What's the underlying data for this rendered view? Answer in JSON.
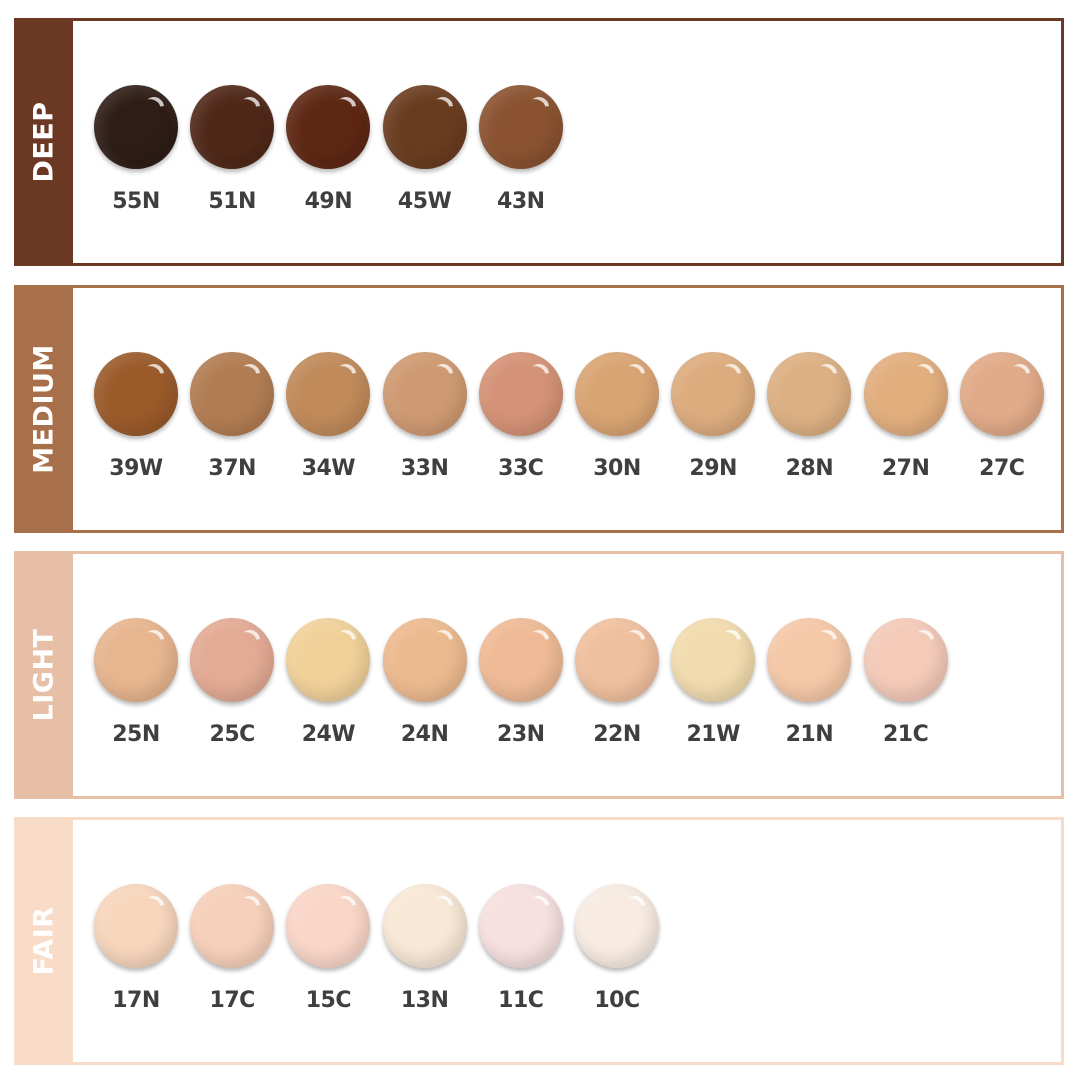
{
  "sections": [
    {
      "name": "DEEP",
      "color": "#6a3823",
      "shades": [
        {
          "code": "55N",
          "color": "#2e1d16"
        },
        {
          "code": "51N",
          "color": "#4f2818"
        },
        {
          "code": "49N",
          "color": "#5e2714"
        },
        {
          "code": "45W",
          "color": "#6a3c1f"
        },
        {
          "code": "43N",
          "color": "#8a5230"
        }
      ]
    },
    {
      "name": "MEDIUM",
      "color": "#a8704a",
      "shades": [
        {
          "code": "39W",
          "color": "#9a5a2a"
        },
        {
          "code": "37N",
          "color": "#b27c52"
        },
        {
          "code": "34W",
          "color": "#c08a5a"
        },
        {
          "code": "33N",
          "color": "#cf9a72"
        },
        {
          "code": "33C",
          "color": "#d49276"
        },
        {
          "code": "30N",
          "color": "#d9a473"
        },
        {
          "code": "29N",
          "color": "#ddac7e"
        },
        {
          "code": "28N",
          "color": "#ddb083"
        },
        {
          "code": "27N",
          "color": "#e2ae7e"
        },
        {
          "code": "27C",
          "color": "#e1aa88"
        }
      ]
    },
    {
      "name": "LIGHT",
      "color": "#e7bea6",
      "shades": [
        {
          "code": "25N",
          "color": "#e7b58e"
        },
        {
          "code": "25C",
          "color": "#e3aa94"
        },
        {
          "code": "24W",
          "color": "#f1d19a"
        },
        {
          "code": "24N",
          "color": "#edba8f"
        },
        {
          "code": "23N",
          "color": "#efba95"
        },
        {
          "code": "22N",
          "color": "#f0c09e"
        },
        {
          "code": "21W",
          "color": "#f2dbae"
        },
        {
          "code": "21N",
          "color": "#f5c8a7"
        },
        {
          "code": "21C",
          "color": "#f4cab8"
        }
      ]
    },
    {
      "name": "FAIR",
      "color": "#f8dcc8",
      "shades": [
        {
          "code": "17N",
          "color": "#f7d6bd"
        },
        {
          "code": "17C",
          "color": "#f6d0ba"
        },
        {
          "code": "15C",
          "color": "#f9d6c8"
        },
        {
          "code": "13N",
          "color": "#f8e8d6"
        },
        {
          "code": "11C",
          "color": "#f7e0e0"
        },
        {
          "code": "10C",
          "color": "#f8ece2"
        }
      ]
    }
  ]
}
